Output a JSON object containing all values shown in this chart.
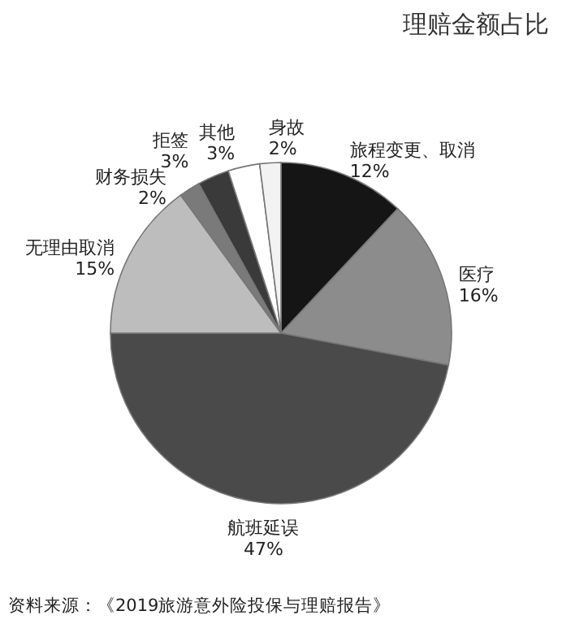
{
  "chart_data": {
    "type": "pie",
    "title": "理赔金额占比",
    "categories": [
      "旅程变更、取消",
      "医疗",
      "航班延误",
      "无理由取消",
      "财务损失",
      "拒签",
      "其他",
      "身故"
    ],
    "values": [
      12,
      16,
      47,
      15,
      2,
      3,
      3,
      2
    ],
    "value_labels": [
      "12%",
      "16%",
      "47%",
      "15%",
      "2%",
      "3%",
      "3%",
      "2%"
    ],
    "colors": [
      "#151515",
      "#8c8c8c",
      "#4a4a4a",
      "#bdbdbd",
      "#7a7a7a",
      "#3a3a3a",
      "#ffffff",
      "#f2f2f2"
    ],
    "annotations": [
      "资料来源：《2019旅游意外险投保与理赔报告》"
    ]
  }
}
